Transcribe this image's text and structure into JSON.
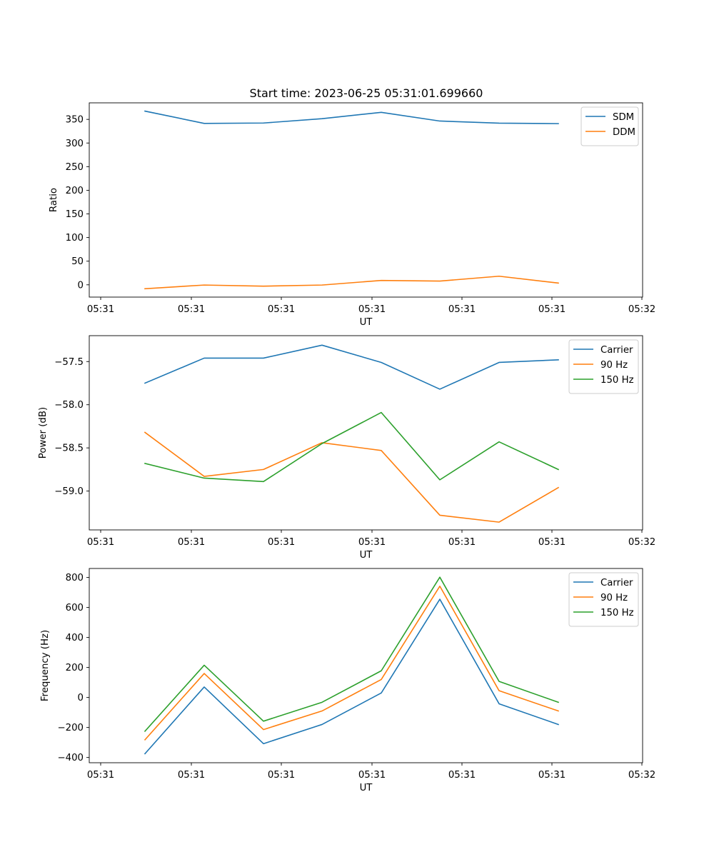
{
  "title": "Start time: 2023-06-25 05:31:01.699660",
  "chart_data": [
    {
      "type": "line",
      "xlabel": "UT",
      "ylabel": "Ratio",
      "legend_position": "top-right",
      "grid": false,
      "x_tick_labels": [
        "05:31",
        "05:31",
        "05:31",
        "05:31",
        "05:31",
        "05:31",
        "05:32"
      ],
      "ylim": [
        -26,
        385
      ],
      "y_ticks": [
        0,
        50,
        100,
        150,
        200,
        250,
        300,
        350
      ],
      "y_tick_labels": [
        "0",
        "50",
        "100",
        "150",
        "200",
        "250",
        "300",
        "350"
      ],
      "series": [
        {
          "name": "SDM",
          "color": "#1f77b4",
          "values": [
            367.5,
            341.5,
            342.3,
            351.5,
            364.9,
            346.5,
            342.0,
            341.0
          ]
        },
        {
          "name": "DDM",
          "color": "#ff7f0e",
          "values": [
            -8.3,
            -0.5,
            -2.9,
            -0.5,
            9.2,
            7.9,
            18.2,
            3.7
          ]
        }
      ]
    },
    {
      "type": "line",
      "xlabel": "UT",
      "ylabel": "Power (dB)",
      "legend_position": "top-right",
      "grid": false,
      "x_tick_labels": [
        "05:31",
        "05:31",
        "05:31",
        "05:31",
        "05:31",
        "05:31",
        "05:32"
      ],
      "ylim": [
        -59.45,
        -57.2
      ],
      "y_ticks": [
        -59.0,
        -58.5,
        -58.0,
        -57.5
      ],
      "y_tick_labels": [
        "−59.0",
        "−58.5",
        "−58.0",
        "−57.5"
      ],
      "series": [
        {
          "name": "Carrier",
          "color": "#1f77b4",
          "values": [
            -57.75,
            -57.46,
            -57.46,
            -57.31,
            -57.51,
            -57.82,
            -57.51,
            -57.48
          ]
        },
        {
          "name": "90 Hz",
          "color": "#ff7f0e",
          "values": [
            -58.32,
            -58.83,
            -58.75,
            -58.44,
            -58.53,
            -59.28,
            -59.36,
            -58.96
          ]
        },
        {
          "name": "150 Hz",
          "color": "#2ca02c",
          "values": [
            -58.68,
            -58.85,
            -58.89,
            -58.45,
            -58.09,
            -58.87,
            -58.43,
            -58.75
          ]
        }
      ]
    },
    {
      "type": "line",
      "xlabel": "UT",
      "ylabel": "Frequency (Hz)",
      "legend_position": "top-right",
      "grid": false,
      "x_tick_labels": [
        "05:31",
        "05:31",
        "05:31",
        "05:31",
        "05:31",
        "05:31",
        "05:32"
      ],
      "ylim": [
        -435,
        860
      ],
      "y_ticks": [
        -400,
        -200,
        0,
        200,
        400,
        600,
        800
      ],
      "y_tick_labels": [
        "−400",
        "−200",
        "0",
        "200",
        "400",
        "600",
        "800"
      ],
      "series": [
        {
          "name": "Carrier",
          "color": "#1f77b4",
          "values": [
            -375,
            70,
            -308,
            -180,
            30,
            655,
            -42,
            -180
          ]
        },
        {
          "name": "90 Hz",
          "color": "#ff7f0e",
          "values": [
            -282,
            160,
            -214,
            -90,
            120,
            742,
            45,
            -90
          ]
        },
        {
          "name": "150 Hz",
          "color": "#2ca02c",
          "values": [
            -225,
            215,
            -158,
            -32,
            178,
            802,
            107,
            -32
          ]
        }
      ]
    }
  ]
}
